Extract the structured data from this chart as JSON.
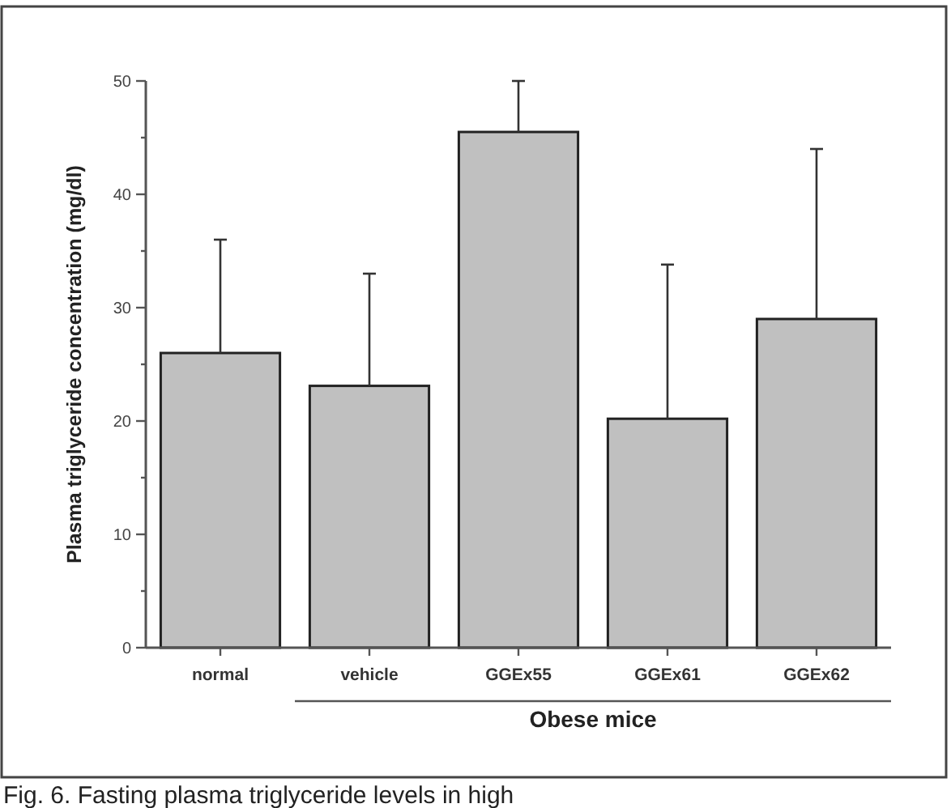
{
  "chart_data": {
    "type": "bar",
    "ylabel": "Plasma triglyceride concentration (mg/dl)",
    "categories": [
      "normal",
      "vehicle",
      "GGEx55",
      "GGEx61",
      "GGEx62"
    ],
    "values": [
      26.0,
      23.1,
      45.5,
      20.2,
      29.0
    ],
    "errors": [
      [
        26.0,
        36.0
      ],
      [
        23.1,
        33.0
      ],
      [
        45.5,
        50.0
      ],
      [
        20.2,
        33.8
      ],
      [
        29.0,
        44.0
      ]
    ],
    "color": "#c0c0c0",
    "ylim": [
      0,
      50
    ],
    "yticks": [
      0,
      {
        "value": 5,
        "label": null
      },
      10,
      {
        "value": 15,
        "label": null
      },
      20,
      {
        "value": 25,
        "label": null
      },
      30,
      {
        "value": 35,
        "label": null
      },
      40,
      {
        "value": 45,
        "label": null
      },
      50
    ],
    "xlabel": "Obese mice",
    "annotations": [
      "Fig. 6. Fasting plasma triglyceride levels in high"
    ]
  }
}
